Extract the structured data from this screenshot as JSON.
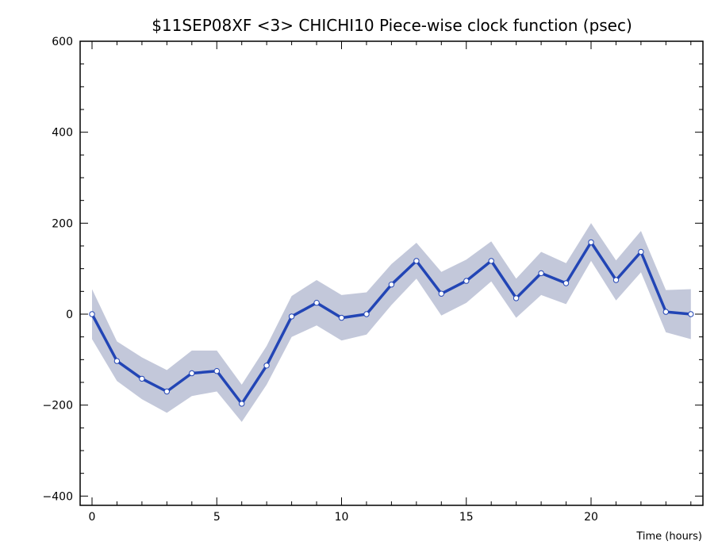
{
  "chart_data": {
    "type": "line",
    "title": "$11SEP08XF <3>  CHICHI10  Piece-wise clock function (psec)",
    "xlabel": "Time (hours)",
    "ylabel": "",
    "xlim": [
      -0.3,
      24.4
    ],
    "ylim": [
      -410,
      600
    ],
    "x_ticks": [
      0,
      5,
      10,
      15,
      20
    ],
    "x_tick_labels": [
      "0",
      "5",
      "10",
      "15",
      "20"
    ],
    "y_ticks": [
      600,
      400,
      200,
      0,
      -200,
      -400
    ],
    "y_tick_labels": [
      "600",
      "400",
      "200",
      "0",
      "−200",
      "−400"
    ],
    "grid": false,
    "series": [
      {
        "x": [
          0,
          1,
          2,
          3,
          4,
          5,
          6,
          7,
          8,
          9,
          10,
          11,
          12,
          13,
          14,
          15,
          16,
          17,
          18,
          19,
          20,
          21,
          22,
          23,
          24
        ],
        "values": [
          0,
          -103,
          -142,
          -170,
          -130,
          -125,
          -197,
          -113,
          -5,
          25,
          -8,
          0,
          65,
          117,
          45,
          73,
          117,
          35,
          90,
          68,
          158,
          75,
          137,
          5,
          0
        ],
        "upper": [
          55,
          -60,
          -95,
          -123,
          -80,
          -80,
          -155,
          -70,
          40,
          75,
          42,
          48,
          110,
          157,
          93,
          120,
          160,
          78,
          137,
          112,
          200,
          118,
          183,
          53,
          55
        ],
        "lower": [
          -55,
          -147,
          -187,
          -217,
          -180,
          -170,
          -237,
          -155,
          -50,
          -25,
          -58,
          -45,
          20,
          78,
          -3,
          25,
          72,
          -8,
          42,
          22,
          117,
          30,
          92,
          -40,
          -55
        ]
      }
    ],
    "colors": {
      "line": "#2245b5",
      "band": "#c3c8da",
      "marker_fill": "#ffffff",
      "marker_stroke": "#2245b5",
      "axis": "#000000"
    }
  }
}
